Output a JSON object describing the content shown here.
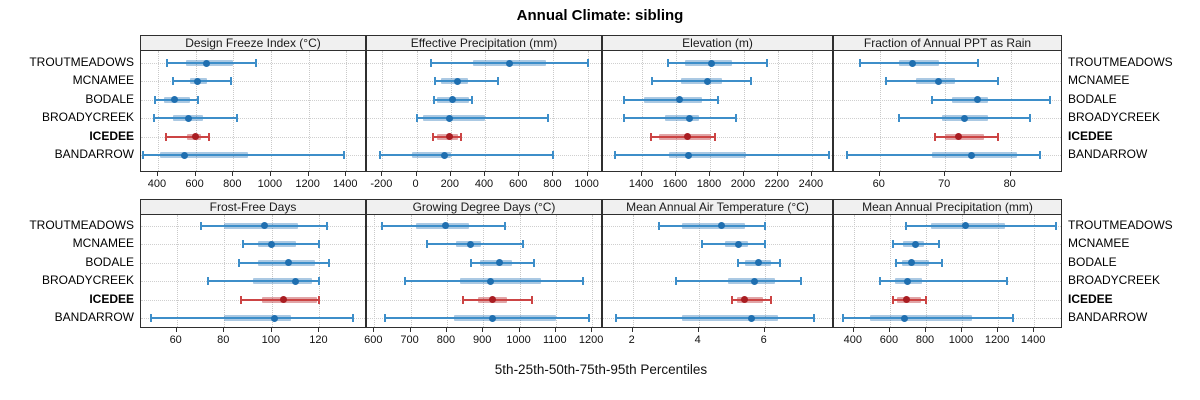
{
  "title": "Annual Climate: sibling",
  "caption": "5th-25th-50th-75th-95th Percentiles",
  "stations": [
    "TROUTMEADOWS",
    "MCNAMEE",
    "BODALE",
    "BROADYCREEK",
    "ICEDEE",
    "BANDARROW"
  ],
  "highlight_station": "ICEDEE",
  "colors": {
    "blue_whisker": "#3d8ec9",
    "blue_iqr": "rgba(33,113,181,0.38)",
    "blue_dot": "#1f6fb0",
    "red_whisker": "#cc4444",
    "red_iqr": "rgba(180,30,35,0.40)",
    "red_dot": "#a91d22",
    "grid": "#c9c9c9",
    "strip_bg": "#f0f0f0",
    "border": "#2f2f2f"
  },
  "chart_data": {
    "type": "dotplot-percentiles",
    "percentiles": [
      5,
      25,
      50,
      75,
      95
    ],
    "legend_note": "rows = stations, whisker = 5th-95th, thick band = 25th-75th, dot = median; ICEDEE highlighted red",
    "stations": [
      "TROUTMEADOWS",
      "MCNAMEE",
      "BODALE",
      "BROADYCREEK",
      "ICEDEE",
      "BANDARROW"
    ],
    "panels": [
      {
        "title": "Design Freeze Index (°C)",
        "grid_row": 0,
        "grid_col": 0,
        "domain": [
          310,
          1510
        ],
        "ticks": [
          400,
          600,
          800,
          1000,
          1200,
          1400
        ],
        "values": [
          [
            450,
            550,
            660,
            800,
            920
          ],
          [
            480,
            570,
            610,
            660,
            790
          ],
          [
            385,
            430,
            490,
            570,
            615
          ],
          [
            380,
            480,
            560,
            640,
            820
          ],
          [
            440,
            555,
            600,
            630,
            670
          ],
          [
            320,
            410,
            540,
            880,
            1390
          ]
        ]
      },
      {
        "title": "Effective Precipitation (mm)",
        "grid_row": 0,
        "grid_col": 1,
        "domain": [
          -290,
          1090
        ],
        "ticks": [
          -200,
          0,
          200,
          400,
          600,
          800,
          1000
        ],
        "values": [
          [
            85,
            330,
            545,
            755,
            1000
          ],
          [
            105,
            140,
            240,
            300,
            475
          ],
          [
            100,
            120,
            210,
            305,
            325
          ],
          [
            0,
            35,
            195,
            400,
            770
          ],
          [
            95,
            120,
            190,
            240,
            260
          ],
          [
            -215,
            -25,
            165,
            200,
            795
          ]
        ]
      },
      {
        "title": "Elevation (m)",
        "grid_row": 0,
        "grid_col": 2,
        "domain": [
          1170,
          2530
        ],
        "ticks": [
          1400,
          1600,
          1800,
          2000,
          2200,
          2400
        ],
        "values": [
          [
            1555,
            1650,
            1810,
            1930,
            2135
          ],
          [
            1460,
            1630,
            1785,
            1870,
            2040
          ],
          [
            1295,
            1410,
            1620,
            1755,
            1845
          ],
          [
            1295,
            1535,
            1680,
            1735,
            1950
          ],
          [
            1455,
            1500,
            1665,
            1805,
            1830
          ],
          [
            1240,
            1560,
            1675,
            2015,
            2500
          ]
        ]
      },
      {
        "title": "Fraction of Annual PPT as Rain",
        "grid_row": 0,
        "grid_col": 3,
        "domain": [
          53,
          88
        ],
        "ticks": [
          60,
          70,
          80
        ],
        "values": [
          [
            57,
            63,
            65,
            69,
            75
          ],
          [
            61,
            65.5,
            69,
            71.5,
            78
          ],
          [
            68,
            71,
            75,
            76.5,
            86
          ],
          [
            63,
            69.5,
            73,
            76.5,
            83
          ],
          [
            68.5,
            70,
            72,
            76,
            78
          ],
          [
            55,
            68,
            74,
            81,
            84.5
          ]
        ]
      },
      {
        "title": "Frost-Free Days",
        "grid_row": 1,
        "grid_col": 0,
        "domain": [
          45,
          140
        ],
        "ticks": [
          60,
          80,
          100,
          120
        ],
        "values": [
          [
            70,
            80,
            97,
            111,
            123
          ],
          [
            88,
            94,
            100,
            110,
            120
          ],
          [
            86,
            94,
            107,
            118,
            124
          ],
          [
            73,
            92,
            110,
            117,
            120
          ],
          [
            87,
            96,
            105,
            119,
            120
          ],
          [
            49,
            80,
            101,
            108,
            134
          ]
        ]
      },
      {
        "title": "Growing Degree Days (°C)",
        "grid_row": 1,
        "grid_col": 1,
        "domain": [
          580,
          1230
        ],
        "ticks": [
          600,
          700,
          800,
          900,
          1000,
          1100,
          1200
        ],
        "values": [
          [
            620,
            715,
            795,
            860,
            960
          ],
          [
            745,
            825,
            865,
            895,
            1010
          ],
          [
            865,
            890,
            945,
            980,
            1040
          ],
          [
            685,
            835,
            920,
            1060,
            1175
          ],
          [
            845,
            885,
            925,
            965,
            1035
          ],
          [
            630,
            820,
            925,
            1100,
            1190
          ]
        ]
      },
      {
        "title": "Mean Annual Air Temperature (°C)",
        "grid_row": 1,
        "grid_col": 2,
        "domain": [
          1.1,
          8.1
        ],
        "ticks": [
          2,
          4,
          6
        ],
        "values": [
          [
            2.8,
            3.5,
            4.7,
            5.4,
            6.0
          ],
          [
            4.1,
            4.8,
            5.2,
            5.5,
            6.0
          ],
          [
            5.2,
            5.4,
            5.8,
            6.2,
            6.45
          ],
          [
            3.3,
            4.9,
            5.7,
            6.3,
            7.1
          ],
          [
            5.0,
            5.15,
            5.4,
            5.95,
            6.2
          ],
          [
            1.5,
            3.5,
            5.6,
            6.4,
            7.5
          ]
        ]
      },
      {
        "title": "Mean Annual Precipitation (mm)",
        "grid_row": 1,
        "grid_col": 3,
        "domain": [
          290,
          1560
        ],
        "ticks": [
          400,
          600,
          800,
          1000,
          1200,
          1400
        ],
        "values": [
          [
            690,
            830,
            1020,
            1240,
            1520
          ],
          [
            615,
            670,
            740,
            790,
            870
          ],
          [
            635,
            665,
            720,
            820,
            890
          ],
          [
            545,
            630,
            700,
            780,
            1250
          ],
          [
            615,
            640,
            690,
            775,
            800
          ],
          [
            340,
            490,
            680,
            1055,
            1280
          ]
        ]
      }
    ]
  }
}
